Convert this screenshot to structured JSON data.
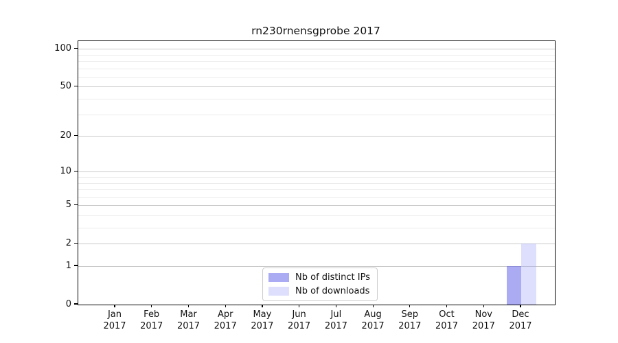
{
  "title": "rn230rnensgprobe 2017",
  "legend": {
    "items": [
      {
        "label": "Nb of distinct IPs",
        "color": "rgba(72,72,232,0.46)"
      },
      {
        "label": "Nb of downloads",
        "color": "rgba(160,160,250,0.35)"
      }
    ]
  },
  "chart_data": {
    "type": "bar",
    "title": "rn230rnensgprobe 2017",
    "y_scale": "log1p",
    "grid": "horizontal",
    "legend_position": "lower center",
    "year": "2017",
    "categories": [
      "Jan",
      "Feb",
      "Mar",
      "Apr",
      "May",
      "Jun",
      "Jul",
      "Aug",
      "Sep",
      "Oct",
      "Nov",
      "Dec"
    ],
    "series": [
      {
        "name": "Nb of distinct IPs",
        "color": "rgba(72,72,232,0.46)",
        "values": [
          0,
          0,
          0,
          0,
          0,
          0,
          0,
          0,
          0,
          0,
          0,
          1
        ]
      },
      {
        "name": "Nb of downloads",
        "color": "rgba(160,160,250,0.35)",
        "values": [
          0,
          0,
          0,
          0,
          0,
          0,
          0,
          0,
          0,
          0,
          0,
          2
        ]
      }
    ],
    "yticks": [
      0,
      1,
      2,
      5,
      10,
      20,
      50,
      100
    ],
    "minor_yticks": [
      3,
      4,
      6,
      7,
      8,
      9,
      30,
      40,
      60,
      70,
      80,
      90
    ],
    "ylim": [
      0,
      115
    ]
  }
}
